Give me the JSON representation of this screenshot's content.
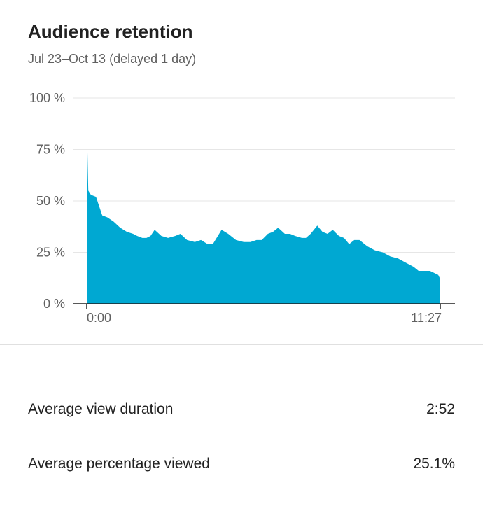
{
  "header": {
    "title": "Audience retention",
    "subtitle": "Jul 23–Oct 13 (delayed 1 day)"
  },
  "chart_data": {
    "type": "area",
    "title": "",
    "xlabel": "",
    "ylabel": "",
    "color": "#00a8d2",
    "xlim_seconds": [
      0,
      687
    ],
    "ylim": [
      0,
      100
    ],
    "y_ticks": [
      0,
      25,
      50,
      75,
      100
    ],
    "y_tick_labels": [
      "0 %",
      "25 %",
      "50 %",
      "75 %",
      "100 %"
    ],
    "x_tick_labels": [
      "0:00",
      "11:27"
    ],
    "grid": true,
    "series": [
      {
        "x_seconds": [
          0,
          3,
          8,
          18,
          30,
          40,
          52,
          65,
          78,
          90,
          98,
          108,
          116,
          124,
          132,
          145,
          158,
          172,
          182,
          195,
          210,
          222,
          235,
          245,
          262,
          275,
          290,
          305,
          318,
          330,
          340,
          352,
          362,
          372,
          385,
          395,
          405,
          418,
          426,
          435,
          448,
          458,
          468,
          478,
          490,
          500,
          510,
          520,
          530,
          545,
          560,
          575,
          590,
          605,
          620,
          635,
          645,
          657,
          667,
          675,
          683,
          687
        ],
        "values": [
          89,
          55,
          53,
          52,
          43,
          42,
          40,
          37,
          35,
          34,
          33,
          32,
          32,
          33,
          36,
          33,
          32,
          33,
          34,
          31,
          30,
          31,
          29,
          29,
          36,
          34,
          31,
          30,
          30,
          31,
          31,
          34,
          35,
          37,
          34,
          34,
          33,
          32,
          32,
          34,
          38,
          35,
          34,
          36,
          33,
          32,
          29,
          31,
          31,
          28,
          26,
          25,
          23,
          22,
          20,
          18,
          16,
          16,
          16,
          15,
          14,
          12
        ]
      }
    ]
  },
  "metrics": {
    "avg_view_duration": {
      "label": "Average view duration",
      "value": "2:52"
    },
    "avg_percentage_viewed": {
      "label": "Average percentage viewed",
      "value": "25.1%"
    }
  }
}
